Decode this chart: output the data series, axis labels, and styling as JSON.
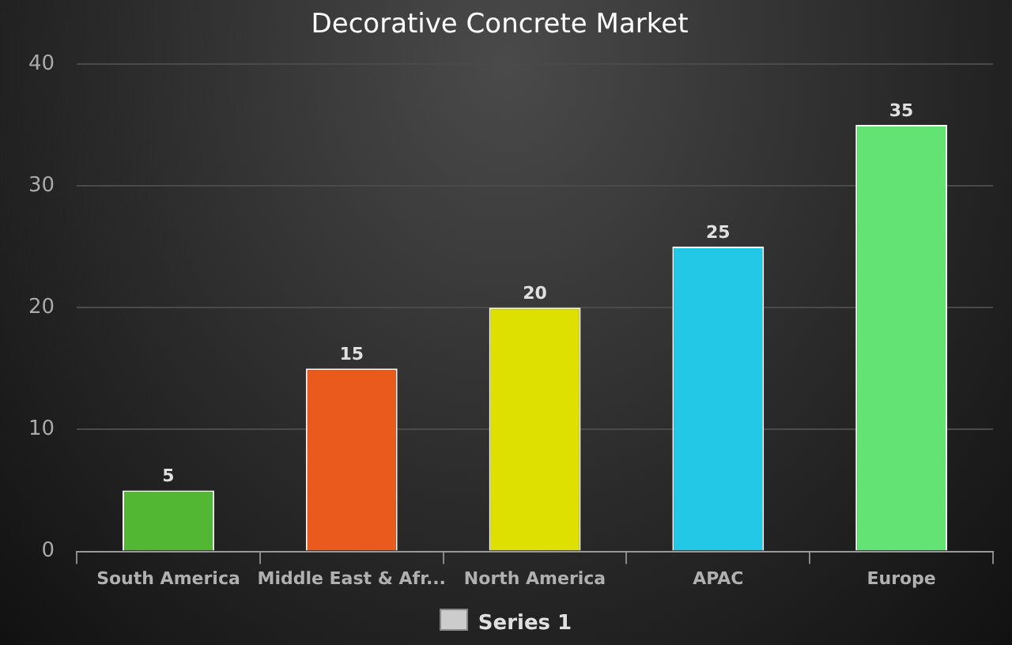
{
  "chart_data": {
    "type": "bar",
    "title": "Decorative Concrete Market",
    "categories": [
      "South America",
      "Middle East & Afr...",
      "North America",
      "APAC",
      "Europe"
    ],
    "series": [
      {
        "name": "Series 1",
        "color": "#cccccc",
        "colors": [
          "#52b833",
          "#ea5a1c",
          "#dde000",
          "#22c8e5",
          "#62e374"
        ],
        "values": [
          5,
          15,
          20,
          25,
          35
        ]
      }
    ],
    "ylim": [
      0,
      40
    ],
    "yticks": [
      0,
      10,
      20,
      30,
      40
    ],
    "grid": "y",
    "legend": "bottom",
    "data_labels": true
  }
}
